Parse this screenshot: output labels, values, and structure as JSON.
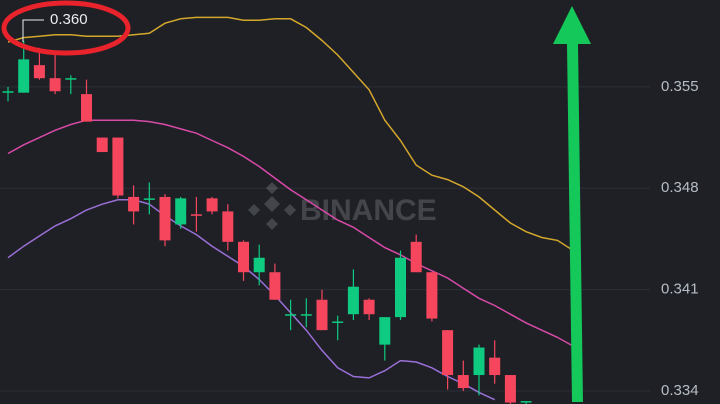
{
  "chart_data": {
    "type": "candlestick",
    "annotation": "0.360",
    "watermark": "BINANCE",
    "up_color": "#0ecb81",
    "down_color": "#f6465d",
    "ylim": [
      0.3331,
      0.361
    ],
    "yticks": [
      0.355,
      0.348,
      0.341,
      0.334
    ],
    "grid": true,
    "open": [
      0.3546,
      0.3546,
      0.3565,
      0.3556,
      0.3556,
      0.3545,
      0.3515,
      0.3515,
      0.3474,
      0.3472,
      0.3474,
      0.3455,
      0.3462,
      0.3473,
      0.3464,
      0.3443,
      0.3422,
      0.3422,
      0.3392,
      0.3393,
      0.3403,
      0.3388,
      0.3393,
      0.3403,
      0.3372,
      0.3391,
      0.3443,
      0.3422,
      0.3382,
      0.3351,
      0.3351,
      0.3363,
      0.3351,
      0.3332
    ],
    "high": [
      0.355,
      0.3582,
      0.3577,
      0.3572,
      0.3558,
      0.3555,
      0.3515,
      0.3515,
      0.3482,
      0.3484,
      0.3476,
      0.3474,
      0.3474,
      0.3474,
      0.3469,
      0.3444,
      0.3441,
      0.3428,
      0.3403,
      0.3404,
      0.341,
      0.3392,
      0.3424,
      0.3404,
      0.3391,
      0.3437,
      0.3448,
      0.3422,
      0.3382,
      0.3361,
      0.3372,
      0.3375,
      0.3351,
      0.3333
    ],
    "low": [
      0.354,
      0.3546,
      0.3555,
      0.3545,
      0.3545,
      0.3526,
      0.3505,
      0.3473,
      0.3455,
      0.3462,
      0.344,
      0.3452,
      0.345,
      0.3462,
      0.3437,
      0.3416,
      0.3413,
      0.3403,
      0.3382,
      0.3384,
      0.3382,
      0.3375,
      0.3389,
      0.3389,
      0.3361,
      0.3389,
      0.3422,
      0.3388,
      0.3341,
      0.334,
      0.3337,
      0.3345,
      0.3331,
      0.3331
    ],
    "close": [
      0.3547,
      0.3569,
      0.3556,
      0.3547,
      0.3556,
      0.3526,
      0.3505,
      0.3475,
      0.3464,
      0.3473,
      0.3444,
      0.3473,
      0.3461,
      0.3464,
      0.3443,
      0.3422,
      0.3432,
      0.3403,
      0.3393,
      0.3393,
      0.3382,
      0.3388,
      0.3412,
      0.3393,
      0.3391,
      0.3432,
      0.3422,
      0.339,
      0.3351,
      0.3342,
      0.337,
      0.3351,
      0.3332,
      0.3333
    ],
    "lines": [
      {
        "color": "#d4a72c",
        "values": [
          0.3581,
          0.3584,
          0.3585,
          0.3586,
          0.3586,
          0.3585,
          0.3585,
          0.3585,
          0.3586,
          0.3587,
          0.3594,
          0.3597,
          0.3598,
          0.3598,
          0.3598,
          0.3596,
          0.3596,
          0.3597,
          0.3597,
          0.3591,
          0.3582,
          0.3572,
          0.356,
          0.3548,
          0.3527,
          0.3513,
          0.3496,
          0.3489,
          0.3486,
          0.3481,
          0.3474,
          0.3465,
          0.3456,
          0.345,
          0.3446,
          0.3444,
          0.3437
        ]
      },
      {
        "color": "#d84aa8",
        "values": [
          0.3504,
          0.351,
          0.3515,
          0.352,
          0.3524,
          0.3527,
          0.3527,
          0.3527,
          0.3527,
          0.3526,
          0.3524,
          0.3521,
          0.3518,
          0.3513,
          0.3508,
          0.3502,
          0.3495,
          0.3487,
          0.3479,
          0.3472,
          0.3465,
          0.3458,
          0.3453,
          0.3446,
          0.3439,
          0.3434,
          0.3428,
          0.3423,
          0.3418,
          0.3411,
          0.3404,
          0.3399,
          0.3393,
          0.3387,
          0.3382,
          0.3377,
          0.3371
        ]
      },
      {
        "color": "#9b6fd8",
        "values": [
          0.3432,
          0.344,
          0.3447,
          0.3454,
          0.3459,
          0.3465,
          0.3469,
          0.3472,
          0.3472,
          0.3469,
          0.3461,
          0.3454,
          0.3448,
          0.344,
          0.3433,
          0.3426,
          0.3417,
          0.3406,
          0.3394,
          0.3382,
          0.3368,
          0.3356,
          0.335,
          0.3349,
          0.3354,
          0.3361,
          0.336,
          0.3356,
          0.335,
          0.3345,
          0.3339,
          0.3334,
          null,
          null,
          null,
          null,
          null
        ]
      }
    ]
  }
}
